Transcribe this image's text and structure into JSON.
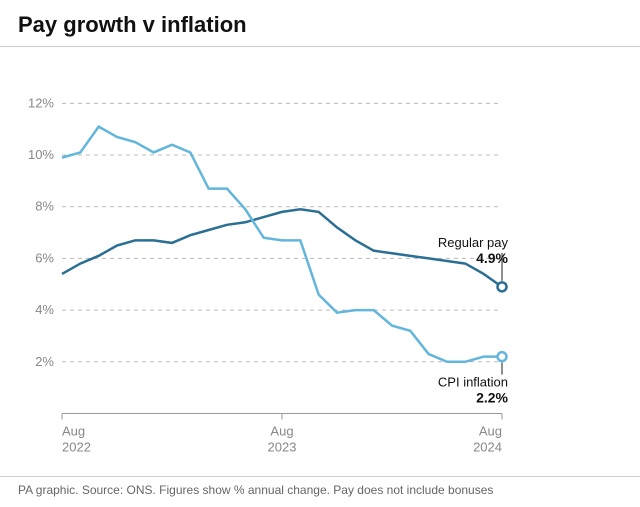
{
  "title": "Pay growth v inflation",
  "footer": "PA graphic. Source: ONS. Figures show % annual change. Pay does not include bonuses",
  "chart": {
    "type": "line",
    "background_color": "#ffffff",
    "grid_color": "#bbbbbb",
    "baseline_color": "#999999",
    "title_fontsize": 22,
    "label_fontsize": 13,
    "y": {
      "min": 0,
      "max": 13,
      "ticks": [
        2,
        4,
        6,
        8,
        10,
        12
      ],
      "tick_labels": [
        "2%",
        "4%",
        "6%",
        "8%",
        "10%",
        "12%"
      ],
      "grid_dash": "4 4"
    },
    "x": {
      "min": 0,
      "max": 24,
      "ticks": [
        0,
        12,
        24
      ],
      "tick_labels_top": [
        "Aug",
        "Aug",
        "Aug"
      ],
      "tick_labels_bottom": [
        "2022",
        "2023",
        "2024"
      ]
    },
    "series": [
      {
        "name": "Regular pay",
        "color": "#2b6f94",
        "line_width": 2.5,
        "end_label": "Regular pay",
        "end_value_label": "4.9%",
        "end_marker": {
          "r": 4.5,
          "fill": "#ffffff",
          "stroke": "#2b6f94"
        },
        "points": [
          [
            0,
            5.4
          ],
          [
            1,
            5.8
          ],
          [
            2,
            6.1
          ],
          [
            3,
            6.5
          ],
          [
            4,
            6.7
          ],
          [
            5,
            6.7
          ],
          [
            6,
            6.6
          ],
          [
            7,
            6.9
          ],
          [
            8,
            7.1
          ],
          [
            9,
            7.3
          ],
          [
            10,
            7.4
          ],
          [
            11,
            7.6
          ],
          [
            12,
            7.8
          ],
          [
            13,
            7.9
          ],
          [
            14,
            7.8
          ],
          [
            15,
            7.2
          ],
          [
            16,
            6.7
          ],
          [
            17,
            6.3
          ],
          [
            18,
            6.2
          ],
          [
            19,
            6.1
          ],
          [
            20,
            6.0
          ],
          [
            21,
            5.9
          ],
          [
            22,
            5.8
          ],
          [
            23,
            5.4
          ],
          [
            24,
            4.9
          ]
        ]
      },
      {
        "name": "CPI inflation",
        "color": "#63b6db",
        "line_width": 2.5,
        "end_label": "CPI inflation",
        "end_value_label": "2.2%",
        "end_marker": {
          "r": 4.5,
          "fill": "#ffffff",
          "stroke": "#63b6db"
        },
        "points": [
          [
            0,
            9.9
          ],
          [
            1,
            10.1
          ],
          [
            2,
            11.1
          ],
          [
            3,
            10.7
          ],
          [
            4,
            10.5
          ],
          [
            5,
            10.1
          ],
          [
            6,
            10.4
          ],
          [
            7,
            10.1
          ],
          [
            8,
            8.7
          ],
          [
            9,
            8.7
          ],
          [
            10,
            7.9
          ],
          [
            11,
            6.8
          ],
          [
            12,
            6.7
          ],
          [
            13,
            6.7
          ],
          [
            14,
            4.6
          ],
          [
            15,
            3.9
          ],
          [
            16,
            4.0
          ],
          [
            17,
            4.0
          ],
          [
            18,
            3.4
          ],
          [
            19,
            3.2
          ],
          [
            20,
            2.3
          ],
          [
            21,
            2.0
          ],
          [
            22,
            2.0
          ],
          [
            23,
            2.2
          ],
          [
            24,
            2.2
          ]
        ]
      }
    ],
    "callouts": [
      {
        "series": 0,
        "label_pos": "above",
        "leader": true
      },
      {
        "series": 1,
        "label_pos": "below",
        "leader": true
      }
    ]
  }
}
